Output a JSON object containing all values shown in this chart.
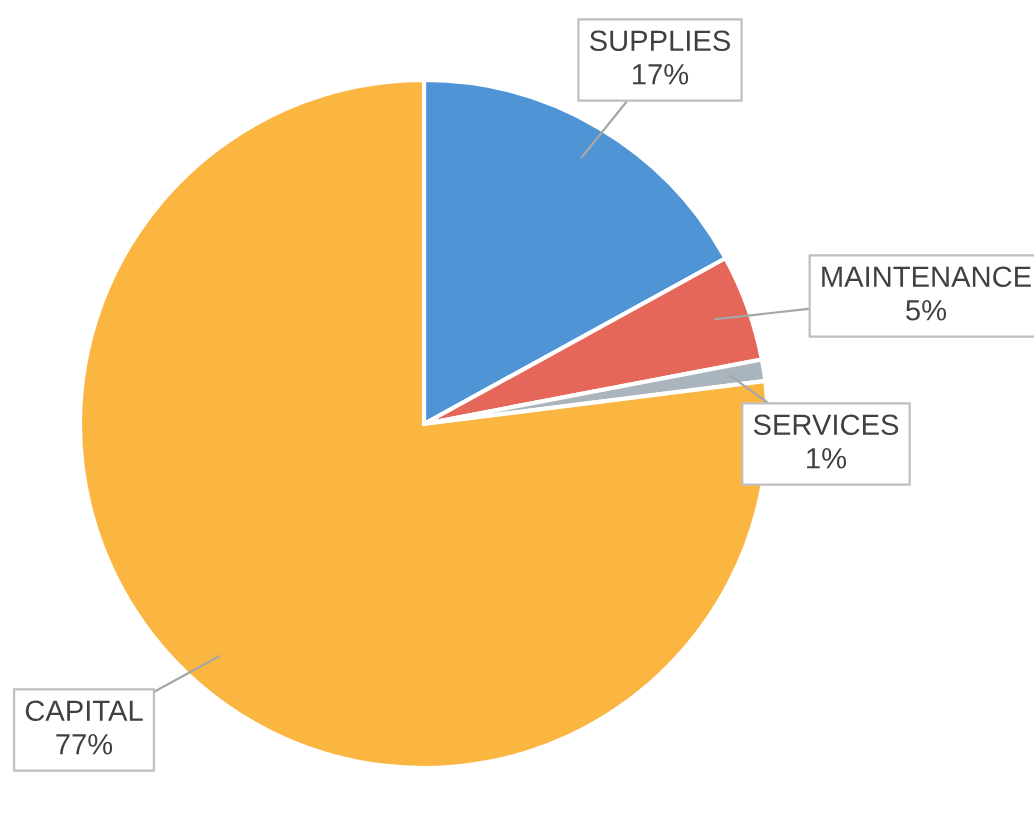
{
  "chart_data": {
    "type": "pie",
    "categories": [
      "SUPPLIES",
      "MAINTENANCE",
      "SERVICES",
      "CAPITAL"
    ],
    "values": [
      17,
      5,
      1,
      77
    ],
    "value_labels": [
      "17%",
      "5%",
      "1%",
      "77%"
    ],
    "colors": [
      "#4f94d4",
      "#e5675a",
      "#a9b4bd",
      "#fbb541"
    ]
  }
}
